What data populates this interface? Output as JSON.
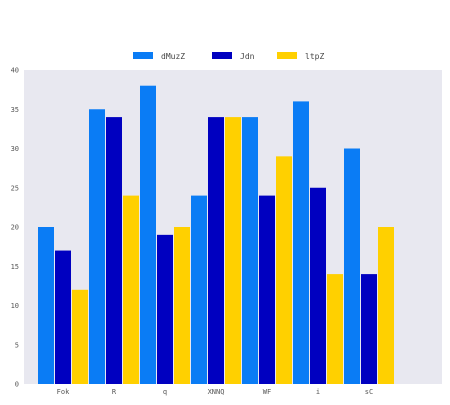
{
  "chart_data": {
    "type": "bar",
    "title": "",
    "xlabel": "",
    "ylabel": "",
    "categories": [
      "Fok",
      "R",
      "q",
      "XNNQ",
      "WF",
      "i",
      "sC"
    ],
    "series": [
      {
        "name": "dMuzZ",
        "color": "#0a7cf5",
        "values": [
          20,
          35,
          38,
          24,
          34,
          36,
          30
        ]
      },
      {
        "name": "Jdn",
        "color": "#0000c0",
        "values": [
          17,
          34,
          19,
          34,
          24,
          25,
          14
        ]
      },
      {
        "name": "ltpZ",
        "color": "#ffd000",
        "values": [
          12,
          24,
          20,
          34,
          29,
          14,
          20
        ]
      }
    ],
    "ylim": [
      0,
      40
    ],
    "yticks": [
      0,
      5,
      10,
      15,
      20,
      25,
      30,
      35,
      40
    ],
    "grid": false,
    "legend_position": "top-center",
    "plot_background": "#e8e8f0"
  }
}
